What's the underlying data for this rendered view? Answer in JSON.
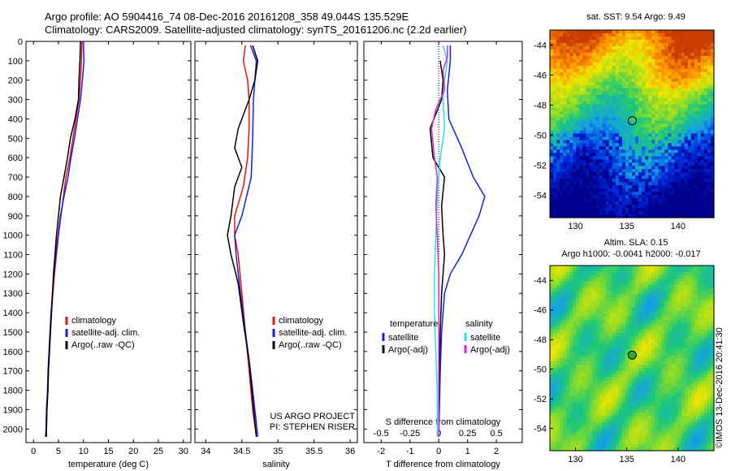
{
  "header": {
    "line1": "Argo profile: AO 5904416_74 08-Dec-2016 20161208_358 49.044S 135.529E",
    "line2": "Climatology: CARS2009. Satellite-adjusted climatology: synTS_20161206.nc (2.2d earlier)"
  },
  "watermark": "©IMOS 13-Dec-2016 20:41:30",
  "colors": {
    "climatology": "#e81010",
    "satellite": "#1a1ae6",
    "argo": "#000000",
    "sat_salinity": "#22e6e6",
    "argo_salinity": "#e022e0"
  },
  "chart_data": [
    {
      "type": "line",
      "id": "temperature",
      "xlabel": "temperature (deg C)",
      "ylabel": "",
      "xlim": [
        -1.5,
        31.5
      ],
      "ylim": [
        2070,
        0
      ],
      "xticks": [
        0,
        5,
        10,
        15,
        20,
        25,
        30
      ],
      "yticks": [
        0,
        100,
        200,
        300,
        400,
        500,
        600,
        700,
        800,
        900,
        1000,
        1100,
        1200,
        1300,
        1400,
        1500,
        1600,
        1700,
        1800,
        1900,
        2000
      ],
      "legend": [
        "climatology",
        "satellite-adj. clim.",
        "Argo(..raw -QC)"
      ],
      "series": [
        {
          "name": "climatology",
          "color": "#e81010",
          "points": [
            [
              9.7,
              0
            ],
            [
              9.6,
              100
            ],
            [
              9.4,
              200
            ],
            [
              9.1,
              300
            ],
            [
              8.5,
              400
            ],
            [
              7.9,
              500
            ],
            [
              7.3,
              600
            ],
            [
              6.5,
              700
            ],
            [
              6.0,
              800
            ],
            [
              5.5,
              900
            ],
            [
              5.0,
              1000
            ],
            [
              4.6,
              1100
            ],
            [
              4.2,
              1200
            ],
            [
              3.9,
              1300
            ],
            [
              3.6,
              1400
            ],
            [
              3.4,
              1500
            ],
            [
              3.2,
              1600
            ],
            [
              3.0,
              1700
            ],
            [
              2.8,
              1800
            ],
            [
              2.7,
              1900
            ],
            [
              2.6,
              2000
            ],
            [
              2.6,
              2040
            ]
          ]
        },
        {
          "name": "satellite-adj. clim.",
          "color": "#1a1ae6",
          "points": [
            [
              10.0,
              0
            ],
            [
              10.1,
              100
            ],
            [
              9.8,
              200
            ],
            [
              9.4,
              300
            ],
            [
              8.8,
              400
            ],
            [
              8.2,
              500
            ],
            [
              7.5,
              600
            ],
            [
              6.9,
              700
            ],
            [
              6.1,
              800
            ],
            [
              5.4,
              900
            ],
            [
              4.9,
              1000
            ],
            [
              4.5,
              1100
            ],
            [
              4.1,
              1200
            ],
            [
              3.8,
              1300
            ],
            [
              3.5,
              1400
            ],
            [
              3.3,
              1500
            ],
            [
              3.1,
              1600
            ],
            [
              2.9,
              1700
            ],
            [
              2.8,
              1800
            ],
            [
              2.6,
              1900
            ],
            [
              2.5,
              2000
            ],
            [
              2.4,
              2040
            ]
          ]
        },
        {
          "name": "Argo(..raw -QC)",
          "color": "#000000",
          "points": [
            [
              9.4,
              0
            ],
            [
              9.3,
              100
            ],
            [
              9.1,
              200
            ],
            [
              9.0,
              300
            ],
            [
              8.3,
              400
            ],
            [
              7.4,
              500
            ],
            [
              6.8,
              600
            ],
            [
              6.1,
              700
            ],
            [
              5.4,
              800
            ],
            [
              5.0,
              900
            ],
            [
              4.6,
              1000
            ],
            [
              4.3,
              1100
            ],
            [
              4.0,
              1200
            ],
            [
              3.8,
              1300
            ],
            [
              3.6,
              1400
            ],
            [
              3.4,
              1500
            ],
            [
              3.2,
              1600
            ],
            [
              3.0,
              1700
            ],
            [
              2.9,
              1800
            ],
            [
              2.7,
              1900
            ],
            [
              2.6,
              2000
            ],
            [
              2.6,
              2040
            ]
          ]
        }
      ]
    },
    {
      "type": "line",
      "id": "salinity",
      "xlabel": "salinity",
      "ylabel": "",
      "xlim": [
        33.85,
        36.1
      ],
      "ylim": [
        2070,
        0
      ],
      "xticks": [
        34,
        34.5,
        35,
        35.5,
        36
      ],
      "legend": [
        "climatology",
        "satellite-adj. clim.",
        "Argo(..raw -QC)"
      ],
      "annotations": [
        "US ARGO PROJECT",
        "PI: STEPHEN RISER"
      ],
      "series": [
        {
          "name": "climatology",
          "color": "#e81010",
          "points": [
            [
              34.55,
              20
            ],
            [
              34.52,
              100
            ],
            [
              34.58,
              200
            ],
            [
              34.6,
              300
            ],
            [
              34.6,
              450
            ],
            [
              34.58,
              600
            ],
            [
              34.52,
              750
            ],
            [
              34.4,
              900
            ],
            [
              34.4,
              1000
            ],
            [
              34.45,
              1100
            ],
            [
              34.5,
              1300
            ],
            [
              34.55,
              1500
            ],
            [
              34.6,
              1700
            ],
            [
              34.65,
              1900
            ],
            [
              34.7,
              2040
            ]
          ]
        },
        {
          "name": "satellite-adj. clim.",
          "color": "#1a1ae6",
          "points": [
            [
              34.62,
              20
            ],
            [
              34.7,
              100
            ],
            [
              34.68,
              200
            ],
            [
              34.66,
              300
            ],
            [
              34.65,
              500
            ],
            [
              34.63,
              700
            ],
            [
              34.5,
              900
            ],
            [
              34.4,
              1000
            ],
            [
              34.42,
              1100
            ],
            [
              34.48,
              1300
            ],
            [
              34.55,
              1500
            ],
            [
              34.62,
              1700
            ],
            [
              34.68,
              1900
            ],
            [
              34.72,
              2040
            ]
          ]
        },
        {
          "name": "Argo(..raw -QC)",
          "color": "#000000",
          "points": [
            [
              34.65,
              20
            ],
            [
              34.72,
              100
            ],
            [
              34.68,
              200
            ],
            [
              34.6,
              300
            ],
            [
              34.45,
              450
            ],
            [
              34.4,
              550
            ],
            [
              34.5,
              650
            ],
            [
              34.4,
              750
            ],
            [
              34.35,
              900
            ],
            [
              34.3,
              1000
            ],
            [
              34.35,
              1100
            ],
            [
              34.45,
              1250
            ],
            [
              34.52,
              1450
            ],
            [
              34.6,
              1650
            ],
            [
              34.65,
              1850
            ],
            [
              34.7,
              2040
            ]
          ]
        }
      ]
    },
    {
      "type": "line",
      "id": "differences",
      "xlabel": "T difference from climatology",
      "title": "S difference from climatology",
      "xlim": [
        -2.6,
        2.9
      ],
      "ylim": [
        2070,
        0
      ],
      "xticks": [
        -2,
        -1,
        0,
        1,
        2
      ],
      "xticks_top": [
        -0.5,
        -0.25,
        0,
        0.25,
        0.5
      ],
      "legend_groups": {
        "temperature": [
          "satellite",
          "Argo(-adj)"
        ],
        "salinity": [
          "satellite",
          "Argo(-adj)"
        ]
      },
      "series": [
        {
          "name": "temperature satellite",
          "color": "#1a1ae6",
          "points": [
            [
              0.4,
              20
            ],
            [
              0.4,
              100
            ],
            [
              0.3,
              250
            ],
            [
              0.35,
              400
            ],
            [
              0.8,
              550
            ],
            [
              1.2,
              700
            ],
            [
              1.6,
              800
            ],
            [
              1.4,
              900
            ],
            [
              1.1,
              1000
            ],
            [
              0.8,
              1100
            ],
            [
              0.4,
              1200
            ],
            [
              0.2,
              1300
            ],
            [
              0.1,
              1500
            ],
            [
              0.05,
              1700
            ],
            [
              0.0,
              2040
            ]
          ]
        },
        {
          "name": "temperature Argo(-adj)",
          "color": "#000000",
          "points": [
            [
              0.05,
              100
            ],
            [
              0.15,
              200
            ],
            [
              0.1,
              300
            ],
            [
              -0.3,
              450
            ],
            [
              -0.2,
              600
            ],
            [
              0.2,
              700
            ],
            [
              0.1,
              850
            ],
            [
              0.15,
              1000
            ],
            [
              0.2,
              1100
            ],
            [
              0.1,
              1300
            ],
            [
              0.05,
              1500
            ],
            [
              0.02,
              1700
            ],
            [
              0.0,
              2040
            ]
          ]
        },
        {
          "name": "salinity satellite",
          "color": "#22e6e6",
          "points": [
            [
              0.15,
              20
            ],
            [
              0.3,
              100
            ],
            [
              0.2,
              200
            ],
            [
              0.15,
              300
            ],
            [
              0.2,
              450
            ],
            [
              0.05,
              600
            ],
            [
              -0.05,
              800
            ],
            [
              -0.1,
              1000
            ],
            [
              -0.15,
              1200
            ],
            [
              -0.15,
              1400
            ],
            [
              -0.1,
              1600
            ],
            [
              -0.05,
              1800
            ],
            [
              -0.05,
              2040
            ]
          ]
        },
        {
          "name": "salinity Argo(-adj)",
          "color": "#e022e0",
          "points": [
            [
              0.3,
              20
            ],
            [
              0.3,
              80
            ],
            [
              0.15,
              150
            ],
            [
              0.2,
              250
            ],
            [
              -0.1,
              350
            ],
            [
              -0.25,
              450
            ],
            [
              -0.15,
              600
            ],
            [
              -0.05,
              700
            ],
            [
              -0.1,
              850
            ],
            [
              -0.05,
              1000
            ],
            [
              0.0,
              1200
            ],
            [
              0.0,
              1600
            ],
            [
              0.0,
              2040
            ]
          ]
        }
      ]
    },
    {
      "type": "heatmap",
      "id": "sst_map",
      "title": "sat. SST: 9.54  Argo: 9.49",
      "xlim": [
        127.5,
        143.5
      ],
      "ylim": [
        -55.5,
        -43
      ],
      "xticks": [
        130,
        135,
        140
      ],
      "yticks": [
        -44,
        -46,
        -48,
        -50,
        -52,
        -54
      ],
      "marker": [
        135.529,
        -49.044
      ]
    },
    {
      "type": "heatmap",
      "id": "sla_map",
      "title": "Altim. SLA: 0.15",
      "subtitle": "Argo h1000: -0.0041 h2000: -0.017",
      "xlim": [
        127.5,
        143.5
      ],
      "ylim": [
        -55.5,
        -43
      ],
      "xticks": [
        130,
        135,
        140
      ],
      "yticks": [
        -44,
        -46,
        -48,
        -50,
        -52,
        -54
      ],
      "marker": [
        135.529,
        -49.044
      ]
    }
  ]
}
